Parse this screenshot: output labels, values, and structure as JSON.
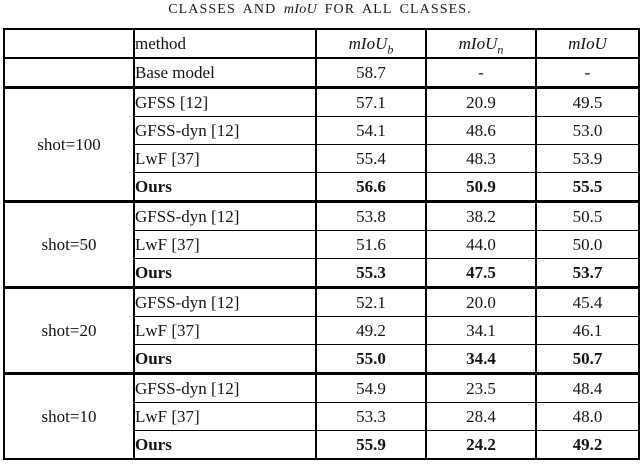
{
  "caption": {
    "before_italic": "CLASSES AND",
    "italic_term": "mIoU",
    "after_italic": "FOR ALL CLASSES."
  },
  "table": {
    "header": {
      "group_label": "",
      "method": "method",
      "metric": "mIoU",
      "sub_base": "b",
      "sub_novel": "n"
    },
    "base_row": {
      "method": "Base model",
      "miou_b": "58.7",
      "miou_n": "-",
      "miou": "-"
    },
    "groups": [
      {
        "label": "shot=100",
        "rows": [
          {
            "method": "GFSS [12]",
            "miou_b": "57.1",
            "miou_n": "20.9",
            "miou": "49.5",
            "bold": false
          },
          {
            "method": "GFSS-dyn [12]",
            "miou_b": "54.1",
            "miou_n": "48.6",
            "miou": "53.0",
            "bold": false
          },
          {
            "method": "LwF [37]",
            "miou_b": "55.4",
            "miou_n": "48.3",
            "miou": "53.9",
            "bold": false
          },
          {
            "method": "Ours",
            "miou_b": "56.6",
            "miou_n": "50.9",
            "miou": "55.5",
            "bold": true
          }
        ]
      },
      {
        "label": "shot=50",
        "rows": [
          {
            "method": "GFSS-dyn [12]",
            "miou_b": "53.8",
            "miou_n": "38.2",
            "miou": "50.5",
            "bold": false
          },
          {
            "method": "LwF [37]",
            "miou_b": "51.6",
            "miou_n": "44.0",
            "miou": "50.0",
            "bold": false
          },
          {
            "method": "Ours",
            "miou_b": "55.3",
            "miou_n": "47.5",
            "miou": "53.7",
            "bold": true
          }
        ]
      },
      {
        "label": "shot=20",
        "rows": [
          {
            "method": "GFSS-dyn [12]",
            "miou_b": "52.1",
            "miou_n": "20.0",
            "miou": "45.4",
            "bold": false
          },
          {
            "method": "LwF [37]",
            "miou_b": "49.2",
            "miou_n": "34.1",
            "miou": "46.1",
            "bold": false
          },
          {
            "method": "Ours",
            "miou_b": "55.0",
            "miou_n": "34.4",
            "miou": "50.7",
            "bold": true
          }
        ]
      },
      {
        "label": "shot=10",
        "rows": [
          {
            "method": "GFSS-dyn [12]",
            "miou_b": "54.9",
            "miou_n": "23.5",
            "miou": "48.4",
            "bold": false
          },
          {
            "method": "LwF [37]",
            "miou_b": "53.3",
            "miou_n": "28.4",
            "miou": "48.0",
            "bold": false
          },
          {
            "method": "Ours",
            "miou_b": "55.9",
            "miou_n": "24.2",
            "miou": "49.2",
            "bold": true
          }
        ]
      }
    ]
  }
}
